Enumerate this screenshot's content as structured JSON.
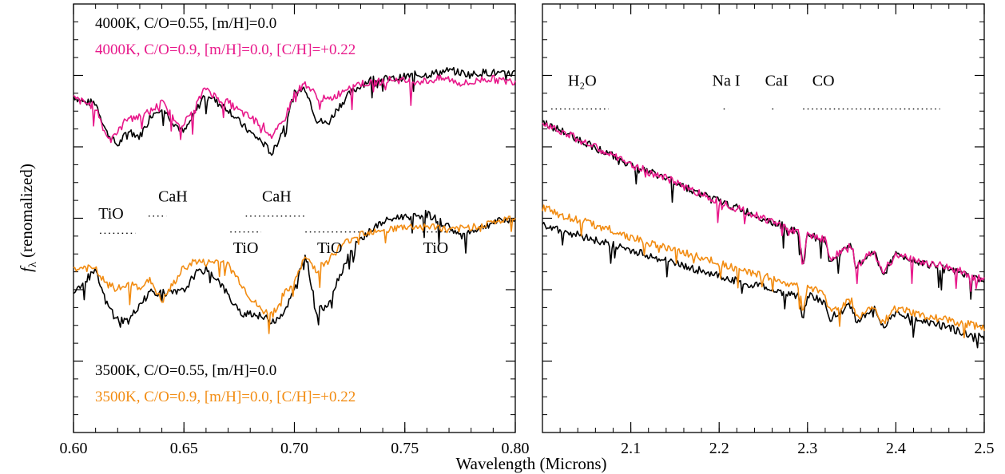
{
  "chart_data": [
    {
      "type": "line",
      "panel": "optical",
      "xlim": [
        0.6,
        0.8
      ],
      "ylim": [
        0,
        1
      ],
      "xticks": [
        "0.60",
        "0.65",
        "0.70",
        "0.75",
        "0.80"
      ],
      "grid": false,
      "legend_top": [
        {
          "text": "4000K, C/O=0.55, [m/H]=0.0",
          "color": "#000000"
        },
        {
          "text": "4000K, C/O=0.9, [m/H]=0.0, [C/H]=+0.22",
          "color": "#e8198b"
        }
      ],
      "legend_bottom": [
        {
          "text": "3500K, C/O=0.55, [m/H]=0.0",
          "color": "#000000"
        },
        {
          "text": "3500K, C/O=0.9, [m/H]=0.0, [C/H]=+0.22",
          "color": "#f28c12"
        }
      ],
      "features": [
        {
          "label": "TiO",
          "x0": 0.612,
          "x1": 0.628,
          "label_x": 0.617,
          "line_y": 0.465,
          "label_y": 0.51
        },
        {
          "label": "CaH",
          "x0": 0.634,
          "x1": 0.642,
          "label_x": 0.645,
          "line_y": 0.505,
          "label_y": 0.55
        },
        {
          "label": "TiO",
          "x0": 0.671,
          "x1": 0.685,
          "label_x": 0.678,
          "line_y": 0.468,
          "label_y": 0.43
        },
        {
          "label": "CaH",
          "x0": 0.678,
          "x1": 0.705,
          "label_x": 0.692,
          "line_y": 0.505,
          "label_y": 0.55
        },
        {
          "label": "TiO",
          "x0": 0.705,
          "x1": 0.731,
          "label_x": 0.716,
          "line_y": 0.468,
          "label_y": 0.43
        },
        {
          "label": "TiO",
          "x0": 0.758,
          "x1": 0.772,
          "label_x": 0.764,
          "line_y": 0.468,
          "label_y": 0.43
        }
      ],
      "series": [
        {
          "name": "4000K, C/O=0.55, [m/H]=0.0",
          "color": "#000000",
          "x": [
            0.6,
            0.605,
            0.61,
            0.615,
            0.62,
            0.625,
            0.63,
            0.635,
            0.64,
            0.645,
            0.65,
            0.655,
            0.66,
            0.665,
            0.67,
            0.675,
            0.68,
            0.685,
            0.69,
            0.695,
            0.7,
            0.705,
            0.71,
            0.715,
            0.72,
            0.725,
            0.73,
            0.735,
            0.74,
            0.745,
            0.75,
            0.755,
            0.76,
            0.765,
            0.77,
            0.775,
            0.78,
            0.785,
            0.79,
            0.795,
            0.8
          ],
          "y": [
            0.785,
            0.77,
            0.77,
            0.7,
            0.67,
            0.705,
            0.69,
            0.74,
            0.76,
            0.725,
            0.7,
            0.745,
            0.795,
            0.77,
            0.755,
            0.725,
            0.7,
            0.68,
            0.65,
            0.71,
            0.79,
            0.805,
            0.73,
            0.72,
            0.76,
            0.79,
            0.81,
            0.825,
            0.825,
            0.825,
            0.83,
            0.835,
            0.835,
            0.84,
            0.845,
            0.84,
            0.835,
            0.84,
            0.84,
            0.835,
            0.84
          ]
        },
        {
          "name": "4000K, C/O=0.9, [m/H]=0.0, [C/H]=+0.22",
          "color": "#e8198b",
          "x": [
            0.6,
            0.605,
            0.61,
            0.615,
            0.62,
            0.625,
            0.63,
            0.635,
            0.64,
            0.645,
            0.65,
            0.655,
            0.66,
            0.665,
            0.67,
            0.675,
            0.68,
            0.685,
            0.69,
            0.695,
            0.7,
            0.705,
            0.71,
            0.715,
            0.72,
            0.725,
            0.73,
            0.735,
            0.74,
            0.745,
            0.75,
            0.755,
            0.76,
            0.765,
            0.77,
            0.775,
            0.78,
            0.785,
            0.79,
            0.795,
            0.8
          ],
          "y": [
            0.78,
            0.77,
            0.76,
            0.69,
            0.7,
            0.74,
            0.735,
            0.75,
            0.77,
            0.735,
            0.72,
            0.76,
            0.805,
            0.78,
            0.77,
            0.75,
            0.735,
            0.72,
            0.69,
            0.725,
            0.79,
            0.815,
            0.785,
            0.775,
            0.79,
            0.81,
            0.815,
            0.815,
            0.82,
            0.825,
            0.82,
            0.82,
            0.82,
            0.825,
            0.825,
            0.815,
            0.815,
            0.825,
            0.825,
            0.82,
            0.82
          ]
        },
        {
          "name": "3500K, C/O=0.55, [m/H]=0.0",
          "color": "#000000",
          "x": [
            0.6,
            0.605,
            0.61,
            0.615,
            0.62,
            0.625,
            0.63,
            0.635,
            0.64,
            0.645,
            0.65,
            0.655,
            0.66,
            0.665,
            0.67,
            0.675,
            0.68,
            0.685,
            0.69,
            0.695,
            0.7,
            0.705,
            0.71,
            0.715,
            0.72,
            0.725,
            0.73,
            0.735,
            0.74,
            0.745,
            0.75,
            0.755,
            0.76,
            0.765,
            0.77,
            0.775,
            0.78,
            0.785,
            0.79,
            0.795,
            0.8
          ],
          "y": [
            0.33,
            0.355,
            0.375,
            0.3,
            0.265,
            0.26,
            0.3,
            0.33,
            0.325,
            0.325,
            0.33,
            0.37,
            0.38,
            0.36,
            0.32,
            0.28,
            0.28,
            0.27,
            0.26,
            0.28,
            0.33,
            0.42,
            0.28,
            0.3,
            0.36,
            0.42,
            0.45,
            0.475,
            0.49,
            0.5,
            0.505,
            0.505,
            0.51,
            0.495,
            0.48,
            0.46,
            0.47,
            0.48,
            0.49,
            0.495,
            0.5
          ]
        },
        {
          "name": "3500K, C/O=0.9, [m/H]=0.0, [C/H]=+0.22",
          "color": "#f28c12",
          "x": [
            0.6,
            0.605,
            0.61,
            0.615,
            0.62,
            0.625,
            0.63,
            0.635,
            0.64,
            0.645,
            0.65,
            0.655,
            0.66,
            0.665,
            0.67,
            0.675,
            0.68,
            0.685,
            0.69,
            0.695,
            0.7,
            0.705,
            0.71,
            0.715,
            0.72,
            0.725,
            0.73,
            0.735,
            0.74,
            0.745,
            0.75,
            0.755,
            0.76,
            0.765,
            0.77,
            0.775,
            0.78,
            0.785,
            0.79,
            0.795,
            0.8
          ],
          "y": [
            0.38,
            0.385,
            0.38,
            0.345,
            0.335,
            0.345,
            0.34,
            0.355,
            0.305,
            0.345,
            0.385,
            0.4,
            0.395,
            0.4,
            0.39,
            0.355,
            0.315,
            0.285,
            0.275,
            0.32,
            0.35,
            0.41,
            0.38,
            0.4,
            0.43,
            0.45,
            0.465,
            0.47,
            0.475,
            0.475,
            0.48,
            0.48,
            0.48,
            0.48,
            0.47,
            0.475,
            0.48,
            0.485,
            0.49,
            0.495,
            0.5
          ]
        }
      ]
    },
    {
      "type": "line",
      "panel": "near-infrared",
      "xlim": [
        2.0,
        2.5
      ],
      "ylim": [
        0,
        1
      ],
      "xticks": [
        "2.1",
        "2.2",
        "2.3",
        "2.4",
        "2.5"
      ],
      "grid": false,
      "features": [
        {
          "label": "H₂O",
          "x0": 2.01,
          "x1": 2.075,
          "label_x": 2.045
        },
        {
          "label": "Na I",
          "x0": 2.205,
          "x1": 2.21,
          "label_x": 2.208
        },
        {
          "label": "CaI",
          "x0": 2.26,
          "x1": 2.265,
          "label_x": 2.265
        },
        {
          "label": "CO",
          "x0": 2.295,
          "x1": 2.45,
          "label_x": 2.318
        }
      ],
      "feature_line_y": 0.755,
      "feature_label_y": 0.82,
      "series": [
        {
          "name": "",
          "color": "#000000",
          "x": [
            2.0,
            2.025,
            2.05,
            2.075,
            2.1,
            2.125,
            2.15,
            2.175,
            2.2,
            2.225,
            2.25,
            2.275,
            2.29,
            2.295,
            2.3,
            2.32,
            2.325,
            2.35,
            2.355,
            2.375,
            2.385,
            2.4,
            2.425,
            2.45,
            2.475,
            2.5
          ],
          "y": [
            0.725,
            0.7,
            0.675,
            0.65,
            0.625,
            0.605,
            0.585,
            0.56,
            0.54,
            0.52,
            0.5,
            0.48,
            0.465,
            0.38,
            0.465,
            0.445,
            0.4,
            0.435,
            0.385,
            0.425,
            0.37,
            0.415,
            0.4,
            0.385,
            0.37,
            0.35
          ]
        },
        {
          "name": "",
          "color": "#e8198b",
          "x": [
            2.0,
            2.025,
            2.05,
            2.075,
            2.1,
            2.125,
            2.15,
            2.175,
            2.2,
            2.225,
            2.25,
            2.275,
            2.29,
            2.295,
            2.3,
            2.32,
            2.325,
            2.35,
            2.355,
            2.375,
            2.385,
            2.4,
            2.425,
            2.45,
            2.475,
            2.5
          ],
          "y": [
            0.725,
            0.7,
            0.675,
            0.65,
            0.625,
            0.605,
            0.585,
            0.56,
            0.54,
            0.52,
            0.5,
            0.48,
            0.465,
            0.385,
            0.465,
            0.45,
            0.405,
            0.435,
            0.385,
            0.425,
            0.375,
            0.415,
            0.4,
            0.39,
            0.375,
            0.355
          ]
        },
        {
          "name": "",
          "color": "#000000",
          "x": [
            2.0,
            2.025,
            2.05,
            2.075,
            2.1,
            2.125,
            2.15,
            2.175,
            2.2,
            2.225,
            2.25,
            2.275,
            2.29,
            2.295,
            2.3,
            2.32,
            2.325,
            2.35,
            2.355,
            2.375,
            2.385,
            2.4,
            2.425,
            2.45,
            2.475,
            2.5
          ],
          "y": [
            0.485,
            0.47,
            0.455,
            0.44,
            0.425,
            0.41,
            0.395,
            0.38,
            0.365,
            0.35,
            0.34,
            0.325,
            0.32,
            0.265,
            0.32,
            0.305,
            0.265,
            0.3,
            0.255,
            0.29,
            0.245,
            0.28,
            0.265,
            0.25,
            0.235,
            0.22
          ]
        },
        {
          "name": "",
          "color": "#f28c12",
          "x": [
            2.0,
            2.025,
            2.05,
            2.075,
            2.1,
            2.125,
            2.15,
            2.175,
            2.2,
            2.225,
            2.25,
            2.275,
            2.29,
            2.295,
            2.3,
            2.32,
            2.325,
            2.35,
            2.355,
            2.375,
            2.385,
            2.4,
            2.425,
            2.45,
            2.475,
            2.5
          ],
          "y": [
            0.525,
            0.505,
            0.49,
            0.475,
            0.455,
            0.44,
            0.425,
            0.41,
            0.395,
            0.38,
            0.365,
            0.35,
            0.34,
            0.28,
            0.34,
            0.325,
            0.28,
            0.31,
            0.265,
            0.3,
            0.255,
            0.29,
            0.275,
            0.265,
            0.255,
            0.245
          ]
        }
      ]
    }
  ],
  "axes": {
    "xlabel": "Wavelength (Microns)",
    "ylabel_symbol": "f",
    "ylabel_sub": "λ",
    "ylabel_rest": " (renomalized)"
  }
}
